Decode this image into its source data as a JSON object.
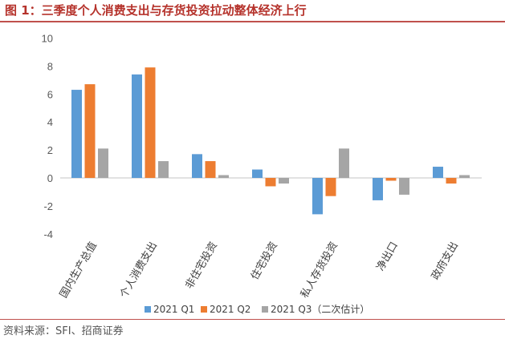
{
  "title": "图 1：三季度个人消费支出与存货投资拉动整体经济上行",
  "source": "资料来源：SFI、招商证券",
  "colors": {
    "Q1": "#5b9bd5",
    "Q2": "#ed7d31",
    "Q3": "#a5a5a5",
    "accent": "#c0504d"
  },
  "chart_data": {
    "type": "bar",
    "title": "三季度个人消费支出与存货投资拉动整体经济上行",
    "categories": [
      "国内生产总值",
      "个人消费支出",
      "非住宅投资",
      "住宅投资",
      "私人存货投资",
      "净出口",
      "政府支出"
    ],
    "series": [
      {
        "name": "2021 Q1",
        "values": [
          6.3,
          7.4,
          1.7,
          0.6,
          -2.6,
          -1.6,
          0.8
        ]
      },
      {
        "name": "2021 Q2",
        "values": [
          6.7,
          7.9,
          1.2,
          -0.6,
          -1.3,
          -0.2,
          -0.4
        ]
      },
      {
        "name": "2021 Q3（二次估计）",
        "values": [
          2.1,
          1.2,
          0.2,
          -0.4,
          2.1,
          -1.2,
          0.2
        ]
      }
    ],
    "yticks": [
      "10",
      "8",
      "6",
      "4",
      "2",
      "0",
      "-2",
      "-4"
    ],
    "ylim": [
      -4,
      10
    ],
    "legend": "bottom",
    "grid": false
  }
}
